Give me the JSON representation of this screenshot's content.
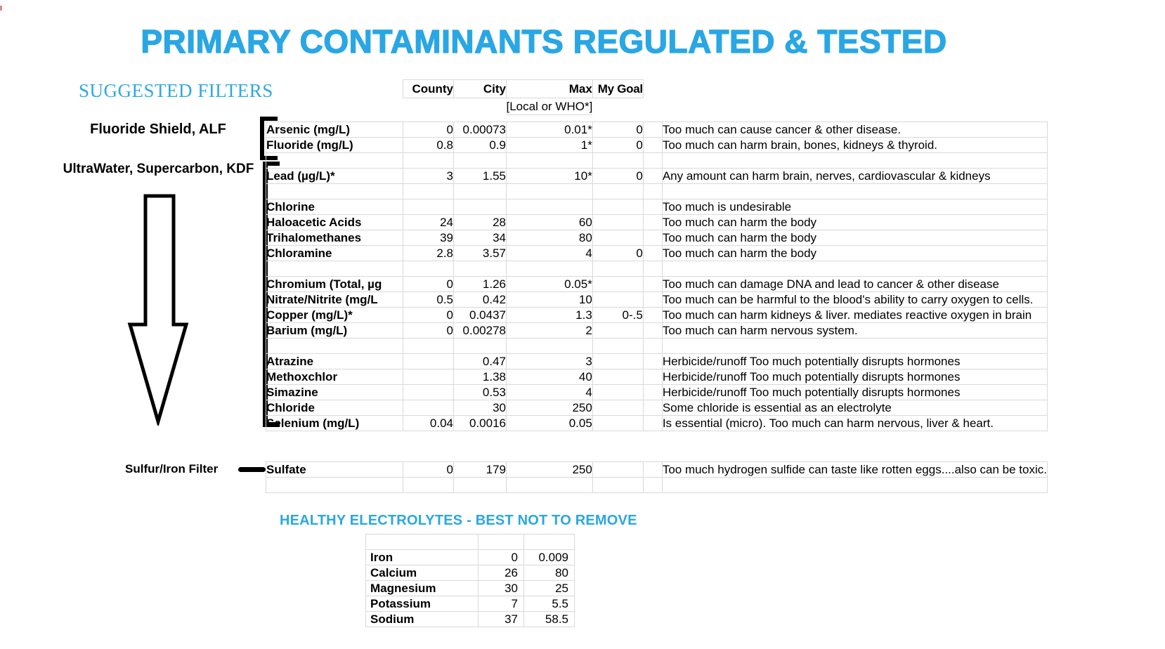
{
  "page": {
    "title": "PRIMARY CONTAMINANTS REGULATED & TESTED",
    "suggested_filters_label": "SUGGESTED FILTERS",
    "colors": {
      "accent_blue": "#29A7E4",
      "grid": "#d9d9d9",
      "annotation": "#000000"
    }
  },
  "filters": {
    "fluoride": "Fluoride Shield, ALF",
    "ultrawater": "UltraWater, Supercarbon, KDF",
    "sulfur": "Sulfur/Iron Filter"
  },
  "table": {
    "headers": {
      "county": "County",
      "city": "City",
      "max": "Max",
      "goal": "My Goal",
      "max_note": "[Local or WHO*]"
    },
    "rows": [
      {
        "t": "d",
        "label": "Arsenic (mg/L)",
        "county": "0",
        "city": "0.00073",
        "max": "0.01*",
        "goal": "0",
        "desc": "Too much can cause cancer & other disease."
      },
      {
        "t": "d",
        "label": "Fluoride (mg/L)",
        "county": "0.8",
        "city": "0.9",
        "max": "1*",
        "goal": "0",
        "desc": "Too much can harm brain, bones, kidneys & thyroid."
      },
      {
        "t": "b"
      },
      {
        "t": "d",
        "label": "Lead (µg/L)*",
        "county": "3",
        "city": "1.55",
        "max": "10*",
        "goal": "0",
        "desc": "Any amount can harm brain, nerves, cardiovascular & kidneys"
      },
      {
        "t": "b"
      },
      {
        "t": "d",
        "label": "Chlorine",
        "county": "",
        "city": "",
        "max": "",
        "goal": "",
        "desc": "Too much is undesirable"
      },
      {
        "t": "d",
        "label": "Haloacetic Acids",
        "indent": true,
        "county": "24",
        "city": "28",
        "max": "60",
        "goal": "",
        "desc": "Too much can harm the body"
      },
      {
        "t": "d",
        "label": "Trihalomethanes",
        "indent": true,
        "county": "39",
        "city": "34",
        "max": "80",
        "goal": "",
        "desc": "Too much can harm the body"
      },
      {
        "t": "d",
        "label": "Chloramine",
        "county": "2.8",
        "city": "3.57",
        "max": "4",
        "goal": "0",
        "desc": "Too much can harm the body"
      },
      {
        "t": "b"
      },
      {
        "t": "d",
        "label": "Chromium (Total, µg",
        "county": "0",
        "city": "1.26",
        "max": "0.05*",
        "goal": "",
        "desc": "Too much can damage DNA and lead to cancer & other disease"
      },
      {
        "t": "d",
        "label": "Nitrate/Nitrite (mg/L",
        "county": "0.5",
        "city": "0.42",
        "max": "10",
        "goal": "",
        "desc": "Too much can be harmful to the blood's ability to carry oxygen to cells."
      },
      {
        "t": "d",
        "label": "Copper (mg/L)*",
        "county": "0",
        "city": "0.0437",
        "max": "1.3",
        "goal": "0-.5",
        "desc": "Too much can harm kidneys & liver. mediates reactive oxygen in brain"
      },
      {
        "t": "d",
        "label": "Barium (mg/L)",
        "county": "0",
        "city": "0.00278",
        "max": "2",
        "goal": "",
        "desc": "Too much can harm nervous system."
      },
      {
        "t": "b"
      },
      {
        "t": "d",
        "label": "Atrazine",
        "county": "",
        "city": "0.47",
        "max": "3",
        "goal": "",
        "desc": "Herbicide/runoff Too much potentially disrupts hormones"
      },
      {
        "t": "d",
        "label": "Methoxchlor",
        "county": "",
        "city": "1.38",
        "max": "40",
        "goal": "",
        "desc": "Herbicide/runoff Too much potentially disrupts hormones"
      },
      {
        "t": "d",
        "label": "Simazine",
        "county": "",
        "city": "0.53",
        "max": "4",
        "goal": "",
        "desc": "Herbicide/runoff Too much potentially disrupts hormones"
      },
      {
        "t": "d",
        "label": "Chloride",
        "county": "",
        "city": "30",
        "max": "250",
        "goal": "",
        "desc": "Some chloride is essential as an electrolyte"
      },
      {
        "t": "d",
        "label": "Selenium (mg/L)",
        "county": "0.04",
        "city": "0.0016",
        "max": "0.05",
        "goal": "",
        "desc": "Is essential (micro). Too much can harm nervous, liver & heart."
      },
      {
        "t": "s"
      },
      {
        "t": "s"
      },
      {
        "t": "d",
        "label": "Sulfate",
        "county": "0",
        "city": "179",
        "max": "250",
        "goal": "",
        "desc": "Too much hydrogen sulfide can taste like rotten eggs....also can be toxic."
      },
      {
        "t": "b"
      }
    ]
  },
  "electrolytes": {
    "title": "HEALTHY ELECTROLYTES - BEST NOT TO REMOVE",
    "rows": [
      {
        "label": "",
        "v1": "",
        "v2": ""
      },
      {
        "label": "Iron",
        "v1": "0",
        "v2": "0.009"
      },
      {
        "label": "Calcium",
        "v1": "26",
        "v2": "80"
      },
      {
        "label": "Magnesium",
        "v1": "30",
        "v2": "25"
      },
      {
        "label": "Potassium",
        "v1": "7",
        "v2": "5.5"
      },
      {
        "label": "Sodium",
        "v1": "37",
        "v2": "58.5"
      }
    ]
  }
}
